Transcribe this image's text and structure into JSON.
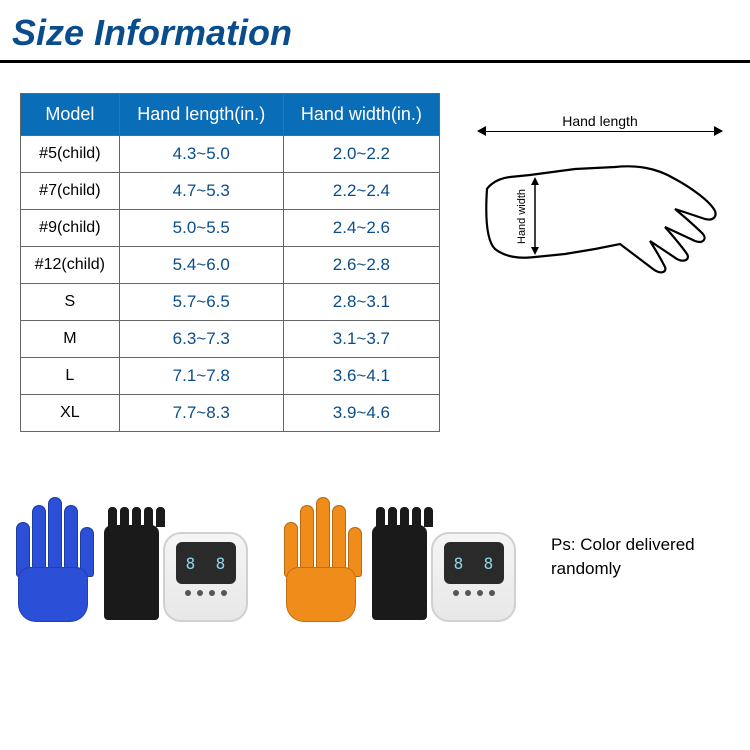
{
  "title": "Size Information",
  "table": {
    "headers": [
      "Model",
      "Hand length(in.)",
      "Hand width(in.)"
    ],
    "rows": [
      [
        "#5(child)",
        "4.3~5.0",
        "2.0~2.2"
      ],
      [
        "#7(child)",
        "4.7~5.3",
        "2.2~2.4"
      ],
      [
        "#9(child)",
        "5.0~5.5",
        "2.4~2.6"
      ],
      [
        "#12(child)",
        "5.4~6.0",
        "2.6~2.8"
      ],
      [
        "S",
        "5.7~6.5",
        "2.8~3.1"
      ],
      [
        "M",
        "6.3~7.3",
        "3.1~3.7"
      ],
      [
        "L",
        "7.1~7.8",
        "3.6~4.1"
      ],
      [
        "XL",
        "7.7~8.3",
        "3.9~4.6"
      ]
    ]
  },
  "diagram": {
    "length_label": "Hand length",
    "width_label": "Hand width"
  },
  "products": {
    "colors": [
      "#2b4fd6",
      "#f08c1a"
    ],
    "controller_display": [
      "8",
      "8"
    ],
    "controller_side_labels": [
      "",
      ""
    ]
  },
  "note": "Ps: Color delivered randomly",
  "styles": {
    "title_color": "#0a4d8c",
    "header_bg": "#0a6db8",
    "value_color": "#0a4d8c"
  }
}
